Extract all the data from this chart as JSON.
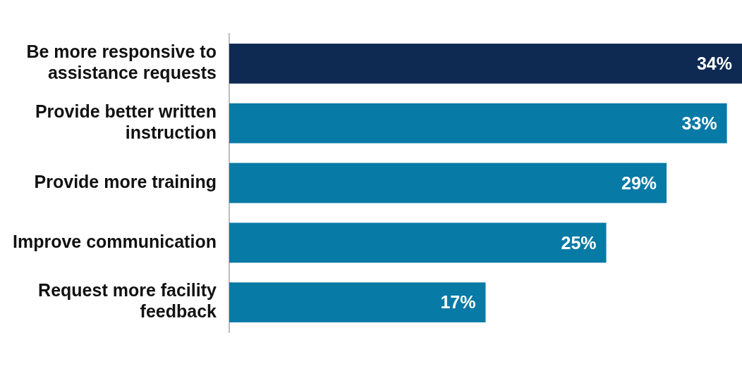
{
  "chart_data": {
    "type": "bar",
    "orientation": "horizontal",
    "categories": [
      "Be more responsive to assistance requests",
      "Provide better written instruction",
      "Provide more training",
      "Improve communication",
      "Request more facility feedback"
    ],
    "values": [
      34,
      33,
      29,
      25,
      17
    ],
    "colors": [
      "#0f2a52",
      "#087aa6",
      "#087aa6",
      "#087aa6",
      "#087aa6"
    ],
    "value_labels": [
      "34%",
      "33%",
      "29%",
      "25%",
      "17%"
    ],
    "xlim": [
      0,
      34
    ],
    "tick_labels": "y"
  }
}
